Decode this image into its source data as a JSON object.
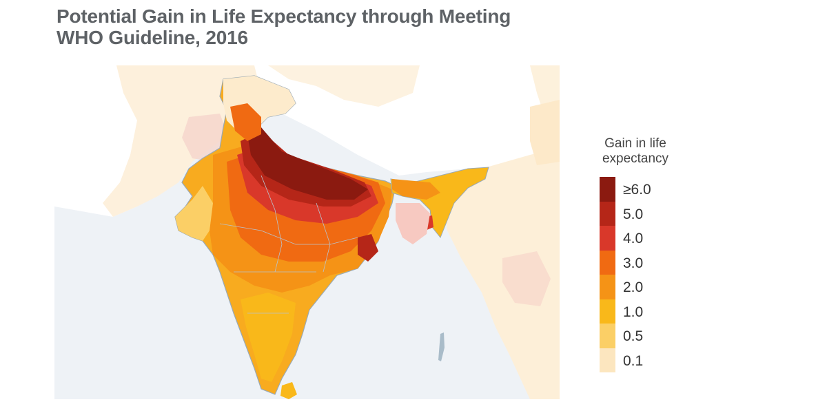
{
  "title": {
    "line1": "Potential Gain in Life Expectancy through Meeting",
    "line2": "WHO Guideline, 2016"
  },
  "legend": {
    "title_line1": "Gain in life",
    "title_line2": "expectancy",
    "items": [
      {
        "label": "≥6.0",
        "color": "#8b1a10"
      },
      {
        "label": "5.0",
        "color": "#b52618"
      },
      {
        "label": "4.0",
        "color": "#d9382a"
      },
      {
        "label": "3.0",
        "color": "#f06a12"
      },
      {
        "label": "2.0",
        "color": "#f59316"
      },
      {
        "label": "1.0",
        "color": "#f9b81a"
      },
      {
        "label": "0.5",
        "color": "#fbcf66"
      },
      {
        "label": "0.1",
        "color": "#fce6bf"
      }
    ]
  },
  "colors": {
    "water": "#eef2f6",
    "land_neutral": "#ffffff",
    "border": "#9aa9b4",
    "title": "#5e6266"
  }
}
